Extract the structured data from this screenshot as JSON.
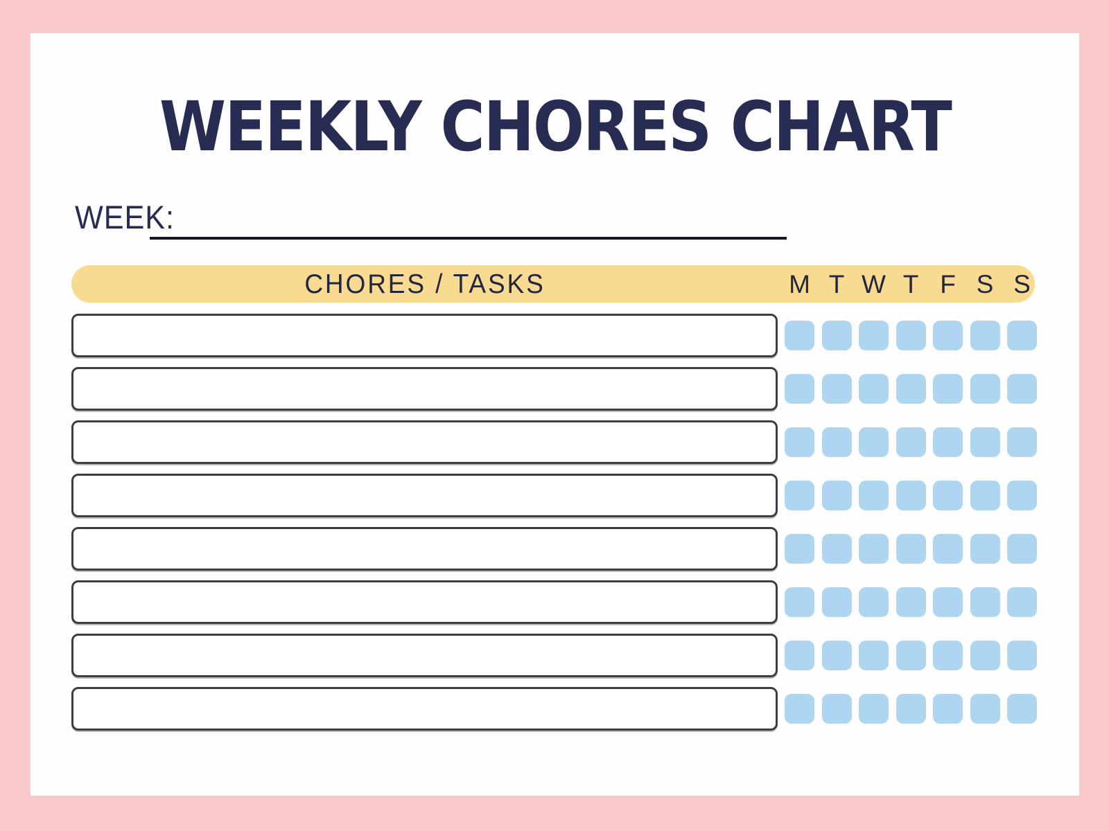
{
  "page": {
    "title": "WEEKLY CHORES CHART",
    "week_label": "WEEK:",
    "week_value": ""
  },
  "table": {
    "header": "CHORES / TASKS",
    "days": [
      "M",
      "T",
      "W",
      "T",
      "F",
      "S",
      "S"
    ],
    "rows": [
      {
        "chore": "",
        "checks": [
          false,
          false,
          false,
          false,
          false,
          false,
          false
        ]
      },
      {
        "chore": "",
        "checks": [
          false,
          false,
          false,
          false,
          false,
          false,
          false
        ]
      },
      {
        "chore": "",
        "checks": [
          false,
          false,
          false,
          false,
          false,
          false,
          false
        ]
      },
      {
        "chore": "",
        "checks": [
          false,
          false,
          false,
          false,
          false,
          false,
          false
        ]
      },
      {
        "chore": "",
        "checks": [
          false,
          false,
          false,
          false,
          false,
          false,
          false
        ]
      },
      {
        "chore": "",
        "checks": [
          false,
          false,
          false,
          false,
          false,
          false,
          false
        ]
      },
      {
        "chore": "",
        "checks": [
          false,
          false,
          false,
          false,
          false,
          false,
          false
        ]
      },
      {
        "chore": "",
        "checks": [
          false,
          false,
          false,
          false,
          false,
          false,
          false
        ]
      }
    ]
  },
  "colors": {
    "pink_border": "#f9c8ca",
    "paper": "#fefefe",
    "yellow": "#f8db90",
    "blue_checkbox": "#aed6f1",
    "navy": "#282b52",
    "ink_text": "#23263f",
    "ink_line": "#16161f",
    "box_border": "#3d3d3d"
  }
}
